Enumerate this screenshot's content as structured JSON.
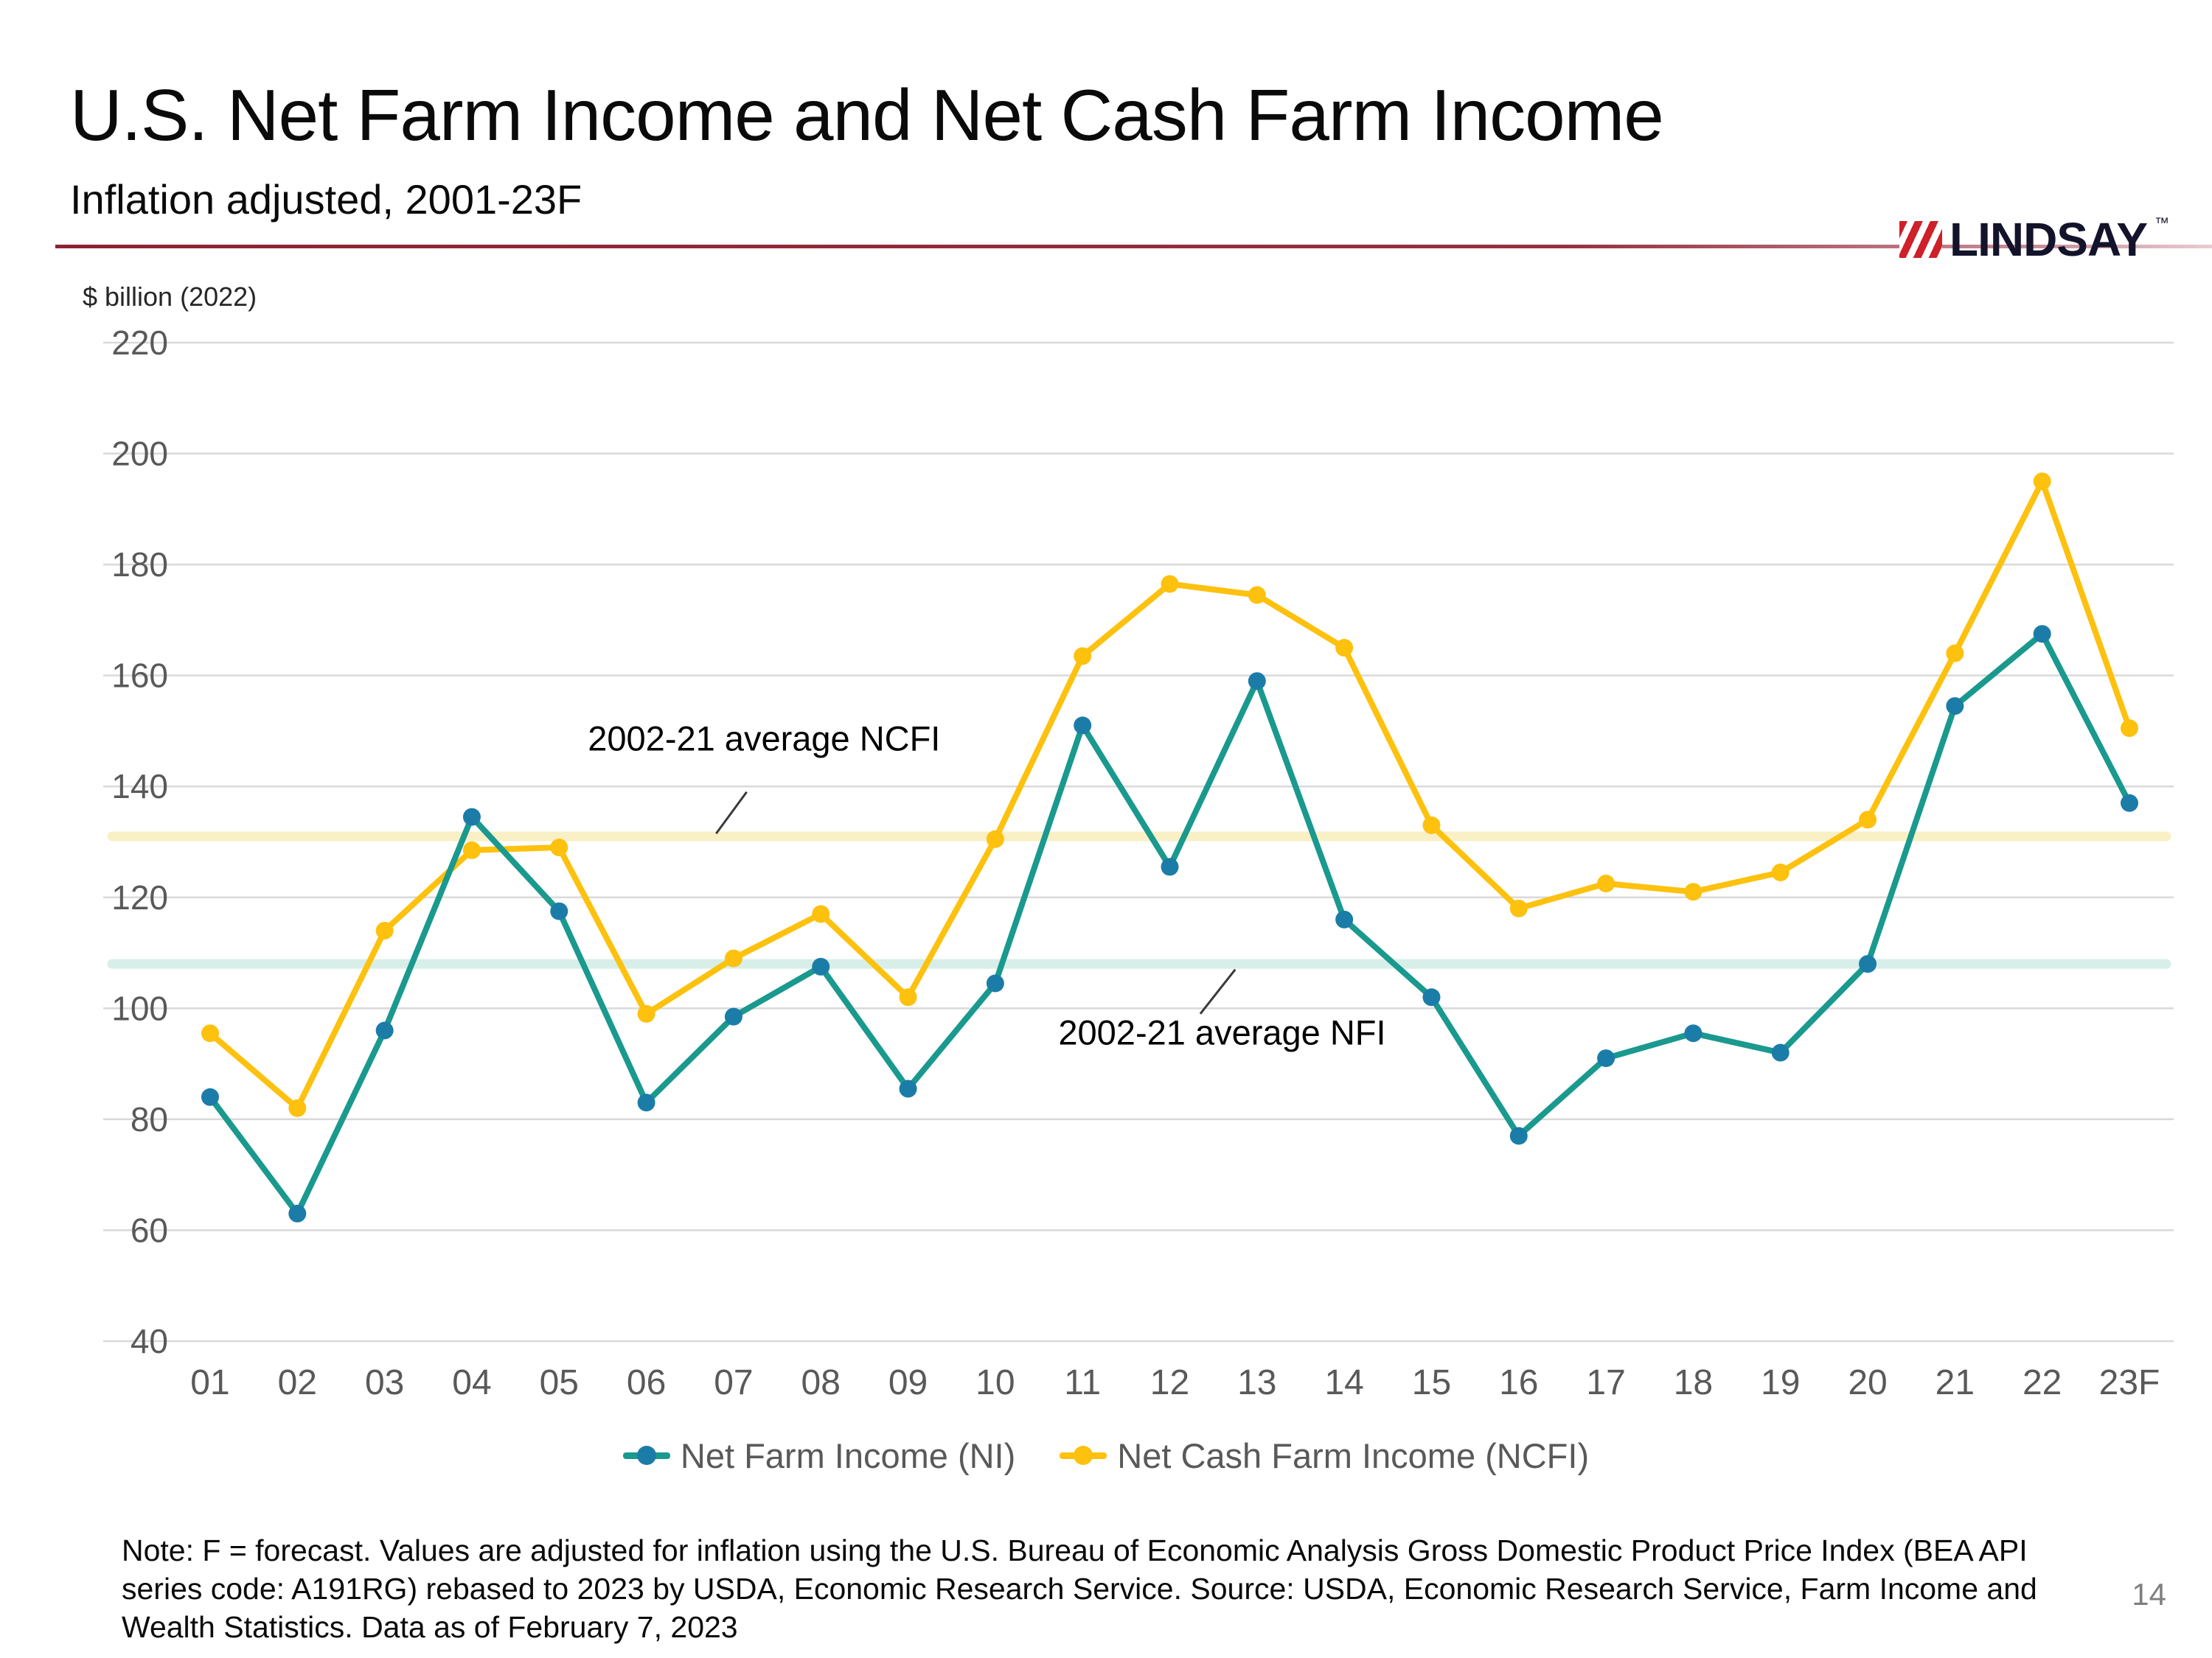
{
  "header": {
    "title": "U.S. Net Farm Income and Net Cash Farm Income",
    "subtitle": "Inflation adjusted, 2001-23F",
    "brand": "LINDSAY",
    "brand_tm": "™"
  },
  "note": "Note: F = forecast. Values are adjusted for inflation using the U.S. Bureau of Economic Analysis Gross Domestic Product Price Index (BEA API series code: A191RG) rebased to 2023 by USDA, Economic Research Service.  Source: USDA, Economic Research Service, Farm Income and Wealth Statistics. Data as of February 7, 2023",
  "page": {
    "number": "14"
  },
  "chart_data": {
    "type": "line",
    "title": "U.S. Net Farm Income and Net Cash Farm Income",
    "subtitle": "Inflation adjusted, 2001-23F",
    "unit_label": "$ billion (2022)",
    "ylim": [
      40,
      220
    ],
    "ytick_step": 20,
    "grid": "horizontal",
    "legend_position": "bottom",
    "categories": [
      "01",
      "02",
      "03",
      "04",
      "05",
      "06",
      "07",
      "08",
      "09",
      "10",
      "11",
      "12",
      "13",
      "14",
      "15",
      "16",
      "17",
      "18",
      "19",
      "20",
      "21",
      "22",
      "23F"
    ],
    "series": [
      {
        "name": "Net Farm Income (NI)",
        "color": "#1A998E",
        "marker_color": "#1C7CA8",
        "values": [
          84,
          63,
          96,
          134.5,
          117.5,
          83,
          98.5,
          107.5,
          85.5,
          104.5,
          151,
          125.5,
          159,
          116,
          102,
          77,
          91,
          95.5,
          92,
          108,
          154.5,
          167.5,
          137
        ]
      },
      {
        "name": "Net Cash Farm Income (NCFI)",
        "color": "#FDC10E",
        "marker_color": "#FDC10E",
        "values": [
          95.5,
          82,
          114,
          128.5,
          129,
          99,
          109,
          117,
          102,
          130.5,
          163.5,
          176.5,
          174.5,
          165,
          133,
          118,
          122.5,
          121,
          124.5,
          134,
          164,
          195,
          150.5
        ]
      }
    ],
    "avg_lines": [
      {
        "label": "2002-21 average NCFI",
        "value": 131,
        "color": "#FAF0C6"
      },
      {
        "label": "2002-21 average NFI",
        "value": 108,
        "color": "#D7EFE8"
      }
    ],
    "annotations": [
      {
        "text": "2002-21 average NCFI",
        "tx": 6.35,
        "ty": 146.5,
        "line": {
          "x1": 5.8,
          "y1": 131.5,
          "x2": 6.15,
          "y2": 139
        }
      },
      {
        "text": "2002-21 average NFI",
        "tx": 11.6,
        "ty": 93.5,
        "line": {
          "x1": 11.35,
          "y1": 99,
          "x2": 11.75,
          "y2": 107
        }
      }
    ],
    "colors": {
      "grid": "#D9D9D9",
      "tick": "#595959",
      "annotation": "#3A3A3A",
      "accent_rule": "#8C2332",
      "brand_red": "#CE2029",
      "brand_dark": "#13132B"
    }
  }
}
